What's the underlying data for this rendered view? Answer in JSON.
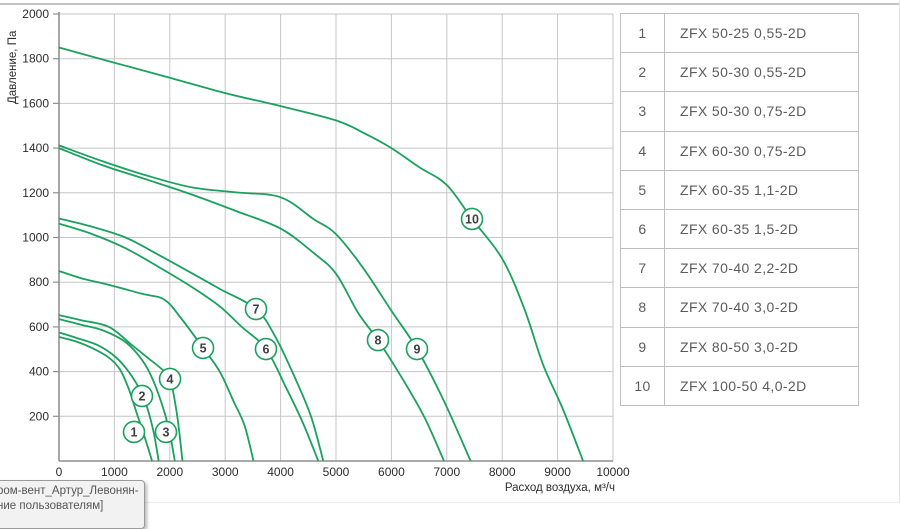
{
  "viewport": {
    "tooltip": {
      "line1": "ром-вент_Артур_Левонян-",
      "line2": "ние пользователям]"
    }
  },
  "chart_data": {
    "type": "line",
    "title": "",
    "xlabel": "Расход воздуха, м³/ч",
    "ylabel": "Давление, Па",
    "xlim": [
      0,
      10000
    ],
    "ylim": [
      0,
      2000
    ],
    "xticks": [
      0,
      1000,
      2000,
      3000,
      4000,
      5000,
      6000,
      7000,
      8000,
      9000,
      10000
    ],
    "yticks": [
      200,
      400,
      600,
      800,
      1000,
      1200,
      1400,
      1600,
      1800,
      2000
    ],
    "grid": true,
    "legend_position": "right-table",
    "curve_color": "#1ba15e",
    "series": [
      {
        "num": 1,
        "name": "ZFX 50-25 0,55-2D",
        "marker": [
          1354,
          130
        ],
        "points": [
          [
            0,
            555
          ],
          [
            300,
            535
          ],
          [
            600,
            505
          ],
          [
            900,
            462
          ],
          [
            1100,
            410
          ],
          [
            1250,
            328
          ],
          [
            1400,
            216
          ],
          [
            1550,
            104
          ],
          [
            1680,
            0
          ]
        ]
      },
      {
        "num": 2,
        "name": "ZFX 50-30 0,55-2D",
        "marker": [
          1498,
          291
        ],
        "points": [
          [
            0,
            575
          ],
          [
            300,
            552
          ],
          [
            700,
            518
          ],
          [
            1000,
            470
          ],
          [
            1200,
            418
          ],
          [
            1400,
            346
          ],
          [
            1550,
            270
          ],
          [
            1700,
            138
          ],
          [
            1800,
            0
          ]
        ]
      },
      {
        "num": 3,
        "name": "ZFX 50-30 0,75-2D",
        "marker": [
          1931,
          130
        ],
        "points": [
          [
            0,
            635
          ],
          [
            400,
            610
          ],
          [
            800,
            584
          ],
          [
            1200,
            532
          ],
          [
            1500,
            452
          ],
          [
            1700,
            360
          ],
          [
            1900,
            220
          ],
          [
            2010,
            110
          ],
          [
            2090,
            0
          ]
        ]
      },
      {
        "num": 4,
        "name": "ZFX 60-30 0,75-2D",
        "marker": [
          2004,
          367
        ],
        "points": [
          [
            0,
            653
          ],
          [
            400,
            630
          ],
          [
            900,
            600
          ],
          [
            1300,
            522
          ],
          [
            1600,
            462
          ],
          [
            1850,
            412
          ],
          [
            2004,
            367
          ],
          [
            2130,
            208
          ],
          [
            2230,
            0
          ]
        ]
      },
      {
        "num": 5,
        "name": "ZFX 60-35 1,1-2D",
        "marker": [
          2600,
          506
        ],
        "points": [
          [
            0,
            850
          ],
          [
            400,
            818
          ],
          [
            900,
            788
          ],
          [
            1500,
            748
          ],
          [
            1900,
            722
          ],
          [
            2200,
            640
          ],
          [
            2600,
            506
          ],
          [
            2900,
            400
          ],
          [
            3150,
            268
          ],
          [
            3350,
            158
          ],
          [
            3510,
            0
          ]
        ]
      },
      {
        "num": 6,
        "name": "ZFX 60-35 1,5-2D",
        "marker": [
          3736,
          501
        ],
        "points": [
          [
            0,
            1062
          ],
          [
            600,
            1015
          ],
          [
            1200,
            952
          ],
          [
            1800,
            868
          ],
          [
            2400,
            778
          ],
          [
            2900,
            692
          ],
          [
            3300,
            600
          ],
          [
            3736,
            501
          ],
          [
            4100,
            328
          ],
          [
            4400,
            172
          ],
          [
            4680,
            0
          ]
        ]
      },
      {
        "num": 7,
        "name": "ZFX 70-40 2,2-2D",
        "marker": [
          3556,
          680
        ],
        "points": [
          [
            0,
            1085
          ],
          [
            600,
            1048
          ],
          [
            1200,
            1000
          ],
          [
            1800,
            922
          ],
          [
            2400,
            840
          ],
          [
            2900,
            770
          ],
          [
            3556,
            680
          ],
          [
            3900,
            558
          ],
          [
            4250,
            378
          ],
          [
            4550,
            198
          ],
          [
            4770,
            0
          ]
        ]
      },
      {
        "num": 8,
        "name": "ZFX 70-40 3,0-2D",
        "marker": [
          5758,
          541
        ],
        "points": [
          [
            0,
            1400
          ],
          [
            800,
            1322
          ],
          [
            1600,
            1258
          ],
          [
            2400,
            1192
          ],
          [
            3200,
            1118
          ],
          [
            4000,
            1040
          ],
          [
            4600,
            930
          ],
          [
            5000,
            838
          ],
          [
            5400,
            662
          ],
          [
            5758,
            541
          ],
          [
            6200,
            368
          ],
          [
            6600,
            194
          ],
          [
            6950,
            0
          ]
        ]
      },
      {
        "num": 9,
        "name": "ZFX 80-50 3,0-2D",
        "marker": [
          6462,
          501
        ],
        "points": [
          [
            0,
            1412
          ],
          [
            800,
            1340
          ],
          [
            1600,
            1276
          ],
          [
            2400,
            1224
          ],
          [
            3200,
            1202
          ],
          [
            4000,
            1180
          ],
          [
            4600,
            1082
          ],
          [
            5000,
            1015
          ],
          [
            5500,
            860
          ],
          [
            6000,
            672
          ],
          [
            6462,
            501
          ],
          [
            6950,
            268
          ],
          [
            7430,
            0
          ]
        ]
      },
      {
        "num": 10,
        "name": "ZFX 100-50 4,0-2D",
        "marker": [
          7455,
          1083
        ],
        "points": [
          [
            0,
            1850
          ],
          [
            1000,
            1782
          ],
          [
            2000,
            1715
          ],
          [
            3000,
            1646
          ],
          [
            4000,
            1588
          ],
          [
            5000,
            1524
          ],
          [
            5500,
            1468
          ],
          [
            6000,
            1400
          ],
          [
            6500,
            1315
          ],
          [
            7000,
            1235
          ],
          [
            7455,
            1083
          ],
          [
            8000,
            905
          ],
          [
            8400,
            680
          ],
          [
            8740,
            430
          ],
          [
            9100,
            230
          ],
          [
            9460,
            0
          ]
        ]
      }
    ]
  },
  "legend_table": {
    "rows": [
      {
        "num": "1",
        "model": "ZFX 50-25 0,55-2D"
      },
      {
        "num": "2",
        "model": "ZFX 50-30 0,55-2D"
      },
      {
        "num": "3",
        "model": "ZFX 50-30 0,75-2D"
      },
      {
        "num": "4",
        "model": "ZFX 60-30 0,75-2D"
      },
      {
        "num": "5",
        "model": "ZFX 60-35 1,1-2D"
      },
      {
        "num": "6",
        "model": "ZFX 60-35 1,5-2D"
      },
      {
        "num": "7",
        "model": "ZFX 70-40 2,2-2D"
      },
      {
        "num": "8",
        "model": "ZFX 70-40 3,0-2D"
      },
      {
        "num": "9",
        "model": "ZFX 80-50 3,0-2D"
      },
      {
        "num": "10",
        "model": "ZFX 100-50 4,0-2D"
      }
    ]
  }
}
